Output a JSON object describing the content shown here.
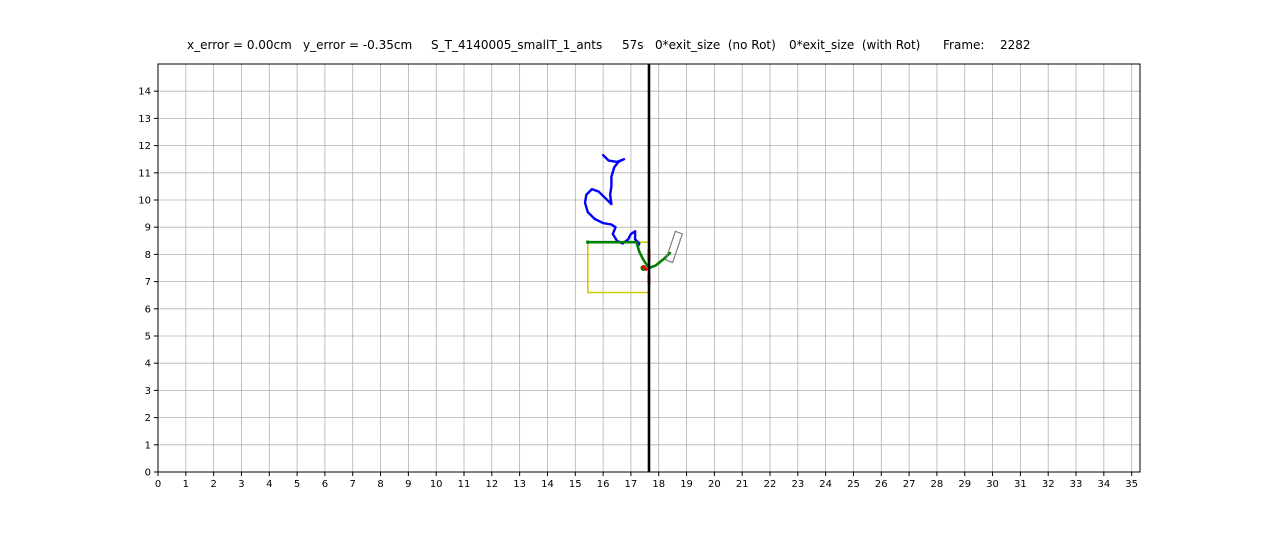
{
  "header": {
    "x_error": "x_error = 0.00cm",
    "y_error": "y_error = -0.35cm",
    "experiment": "S_T_4140005_smallT_1_ants",
    "time": "57s",
    "exit_no_rot": "0*exit_size  (no Rot)",
    "exit_with_rot": "0*exit_size  (with Rot)",
    "frame_label": "Frame:",
    "frame_value": "2282"
  },
  "chart_data": {
    "type": "line",
    "xlim": [
      0,
      35.3
    ],
    "ylim": [
      0,
      15
    ],
    "xticks": [
      0,
      1,
      2,
      3,
      4,
      5,
      6,
      7,
      8,
      9,
      10,
      11,
      12,
      13,
      14,
      15,
      16,
      17,
      18,
      19,
      20,
      21,
      22,
      23,
      24,
      25,
      26,
      27,
      28,
      29,
      30,
      31,
      32,
      33,
      34,
      35
    ],
    "yticks": [
      0,
      1,
      2,
      3,
      4,
      5,
      6,
      7,
      8,
      9,
      10,
      11,
      12,
      13,
      14
    ],
    "grid": true,
    "colors": {
      "trajectory": "#0000ff",
      "load": "#008000",
      "rectangle": "#cccc00",
      "wall": "#000000",
      "grid": "#b0b0b0",
      "force": "#ff0000",
      "shape": "#808080"
    },
    "vertical_line_x": 17.65,
    "trajectory": [
      [
        16.0,
        11.65
      ],
      [
        16.2,
        11.45
      ],
      [
        16.5,
        11.4
      ],
      [
        16.75,
        11.5
      ],
      [
        16.55,
        11.4
      ],
      [
        16.4,
        11.2
      ],
      [
        16.3,
        10.85
      ],
      [
        16.3,
        10.5
      ],
      [
        16.25,
        10.2
      ],
      [
        16.3,
        9.85
      ],
      [
        16.1,
        10.05
      ],
      [
        15.85,
        10.3
      ],
      [
        15.6,
        10.4
      ],
      [
        15.4,
        10.2
      ],
      [
        15.35,
        9.9
      ],
      [
        15.45,
        9.55
      ],
      [
        15.7,
        9.3
      ],
      [
        16.0,
        9.15
      ],
      [
        16.3,
        9.1
      ],
      [
        16.45,
        9.0
      ],
      [
        16.35,
        8.75
      ],
      [
        16.5,
        8.5
      ],
      [
        16.7,
        8.4
      ],
      [
        16.9,
        8.55
      ],
      [
        17.0,
        8.75
      ],
      [
        17.15,
        8.85
      ],
      [
        17.15,
        8.55
      ],
      [
        17.3,
        8.4
      ],
      [
        17.25,
        8.3
      ]
    ],
    "load_path": [
      [
        15.45,
        8.45
      ],
      [
        16.5,
        8.45
      ],
      [
        17.2,
        8.45
      ],
      [
        17.3,
        8.1
      ],
      [
        17.45,
        7.8
      ],
      [
        17.65,
        7.5
      ],
      [
        17.9,
        7.6
      ],
      [
        18.2,
        7.85
      ],
      [
        18.4,
        8.05
      ]
    ],
    "rectangle": {
      "x": [
        15.45,
        17.7
      ],
      "y": [
        6.6,
        8.45
      ]
    },
    "forces": [
      [
        [
          17.65,
          7.8
        ],
        [
          17.65,
          8.15
        ]
      ],
      [
        [
          17.65,
          6.95
        ],
        [
          17.65,
          7.25
        ]
      ],
      [
        [
          17.55,
          7.45
        ],
        [
          17.45,
          7.55
        ]
      ]
    ],
    "shape_outline": [
      [
        18.25,
        7.8
      ],
      [
        18.5,
        7.7
      ],
      [
        18.85,
        8.75
      ],
      [
        18.6,
        8.85
      ]
    ]
  }
}
